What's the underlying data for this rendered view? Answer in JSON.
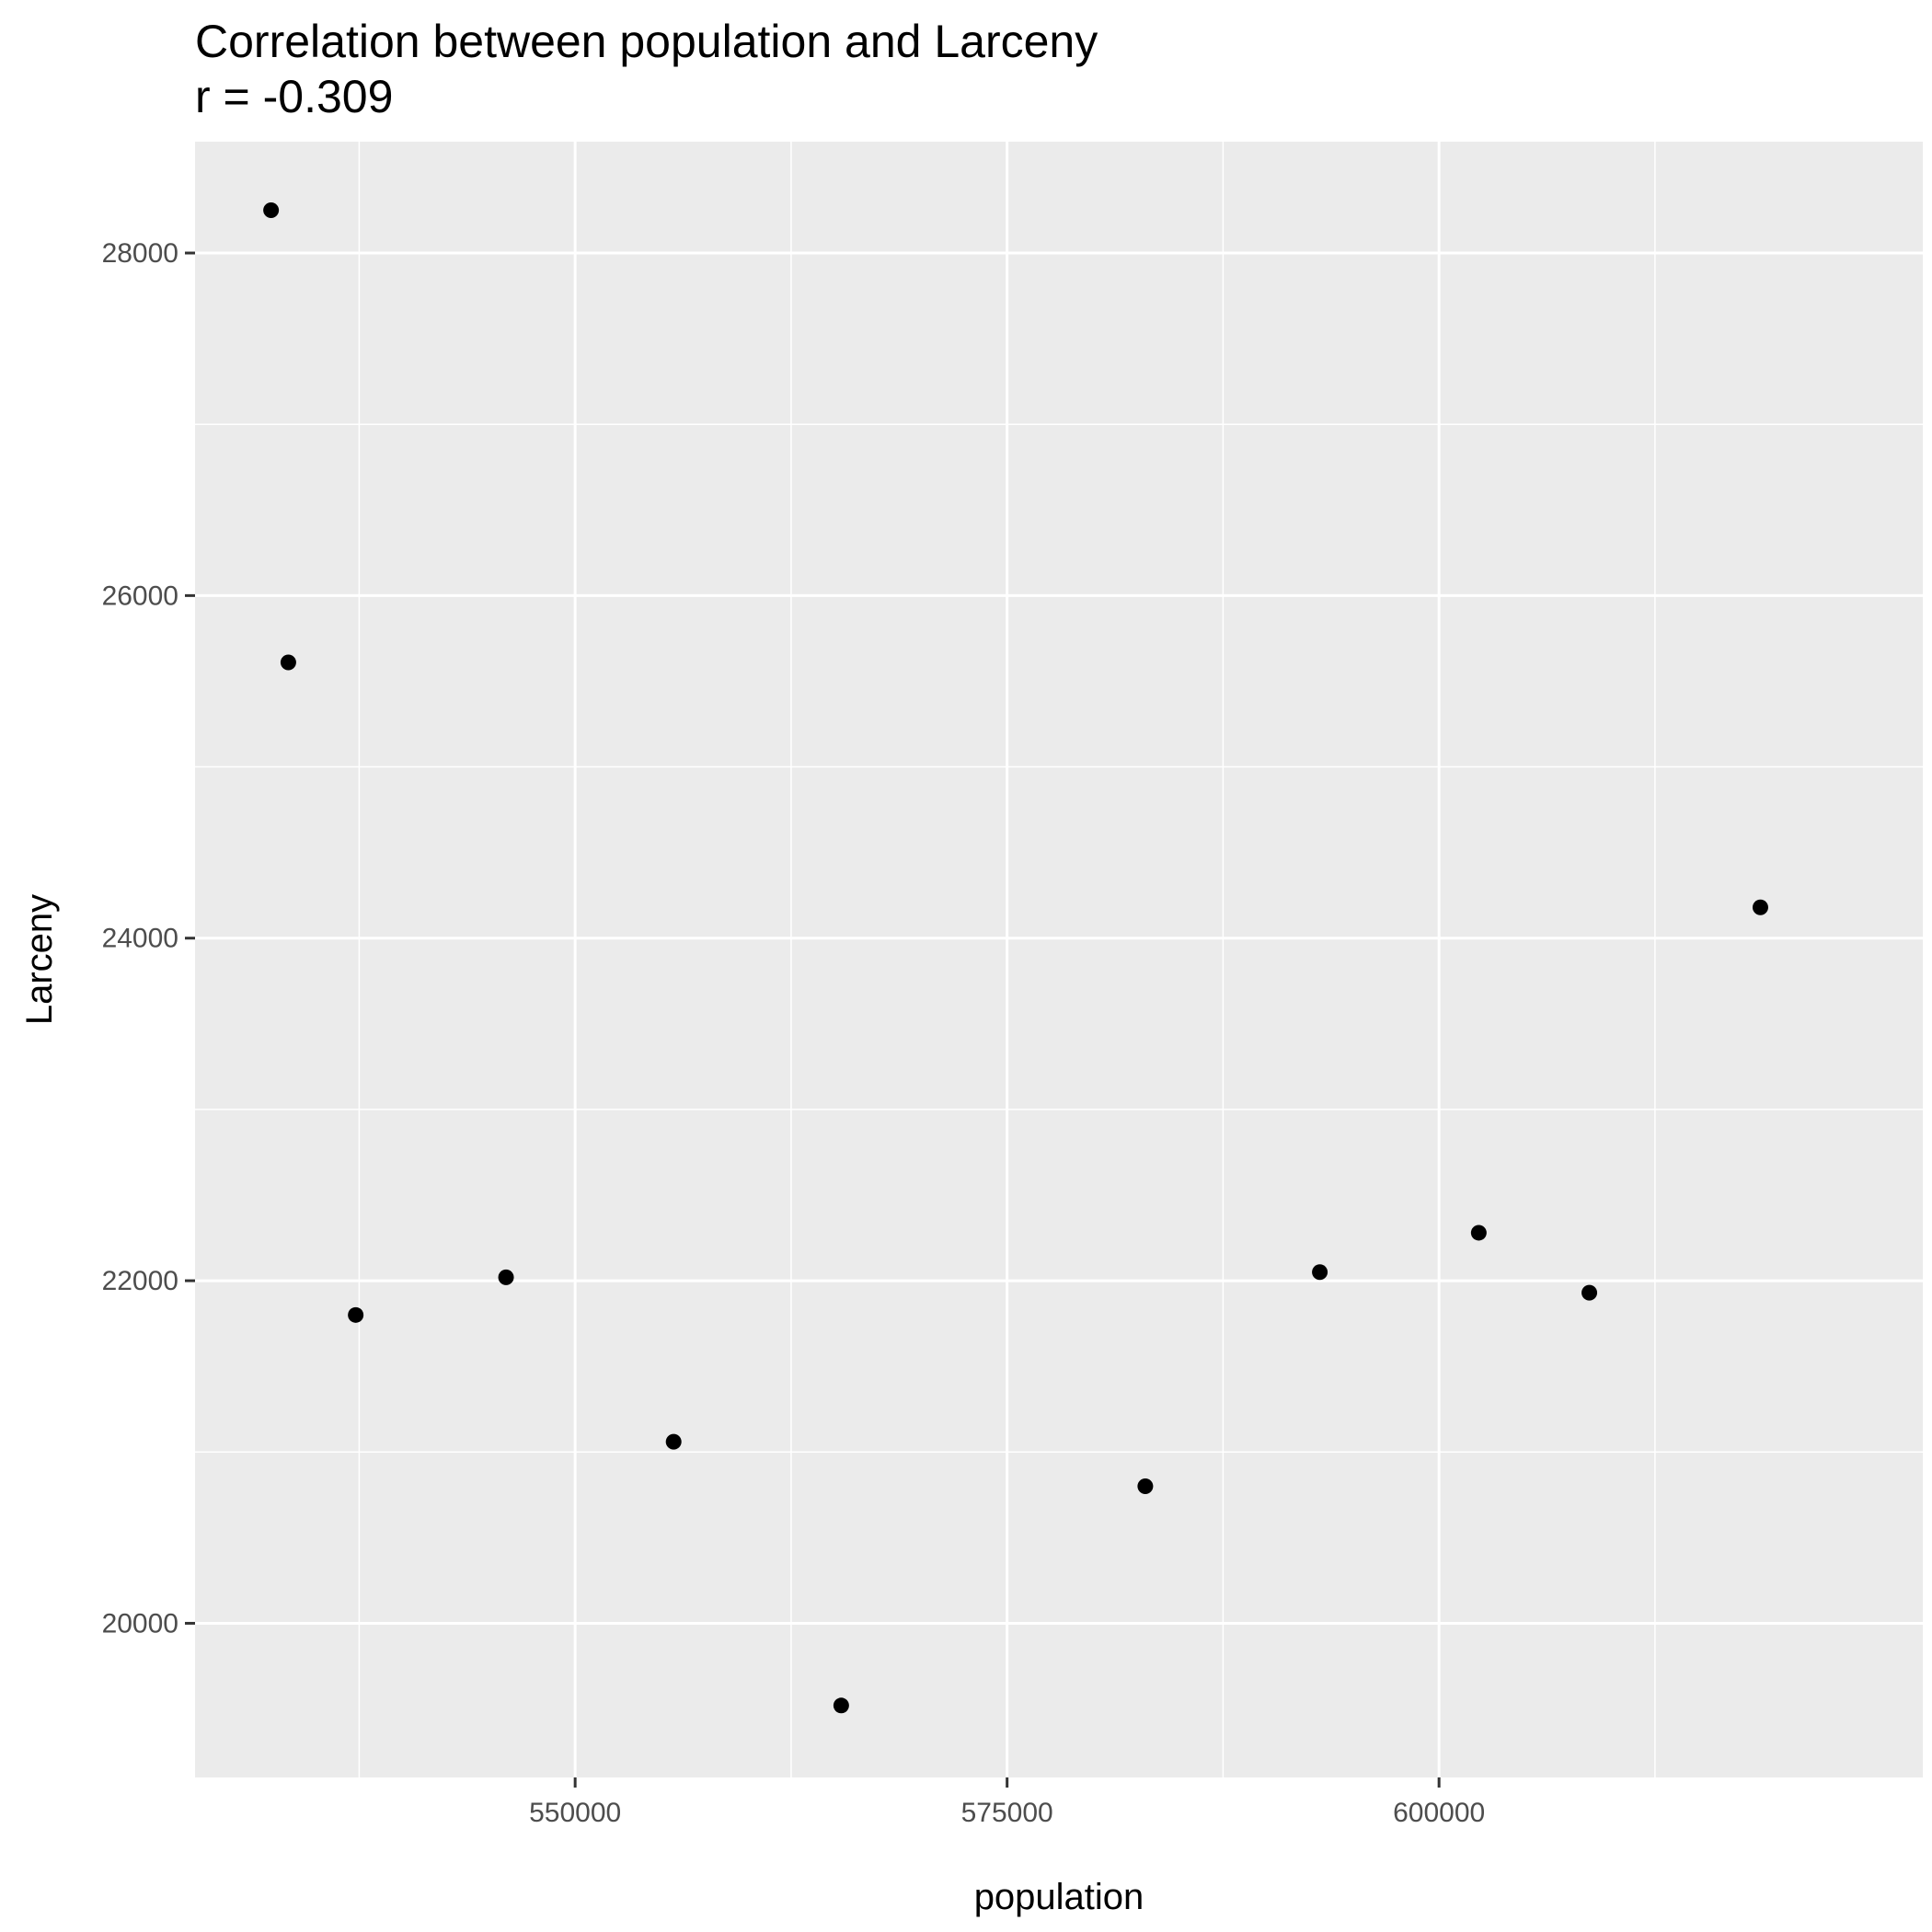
{
  "chart_data": {
    "type": "scatter",
    "title": "Correlation between population and Larceny",
    "subtitle": "r = -0.309",
    "xlabel": "population",
    "ylabel": "Larceny",
    "xlim": [
      528000,
      628000
    ],
    "ylim": [
      19100,
      28650
    ],
    "x_ticks": [
      550000,
      575000,
      600000
    ],
    "y_ticks": [
      20000,
      22000,
      24000,
      26000,
      28000
    ],
    "x_tick_labels": [
      "550000",
      "575000",
      "600000"
    ],
    "y_tick_labels": [
      "20000",
      "22000",
      "24000",
      "26000",
      "28000"
    ],
    "grid": true,
    "points": [
      {
        "x": 532400,
        "y": 28250
      },
      {
        "x": 533400,
        "y": 25610
      },
      {
        "x": 537300,
        "y": 21800
      },
      {
        "x": 546000,
        "y": 22020
      },
      {
        "x": 555700,
        "y": 21060
      },
      {
        "x": 565400,
        "y": 19520
      },
      {
        "x": 583000,
        "y": 20800
      },
      {
        "x": 593100,
        "y": 22050
      },
      {
        "x": 602300,
        "y": 22280
      },
      {
        "x": 608700,
        "y": 21930
      },
      {
        "x": 618600,
        "y": 24180
      }
    ],
    "colors": {
      "panel": "#ebebeb",
      "grid": "#ffffff",
      "point": "#000000",
      "tick": "#333333"
    }
  }
}
